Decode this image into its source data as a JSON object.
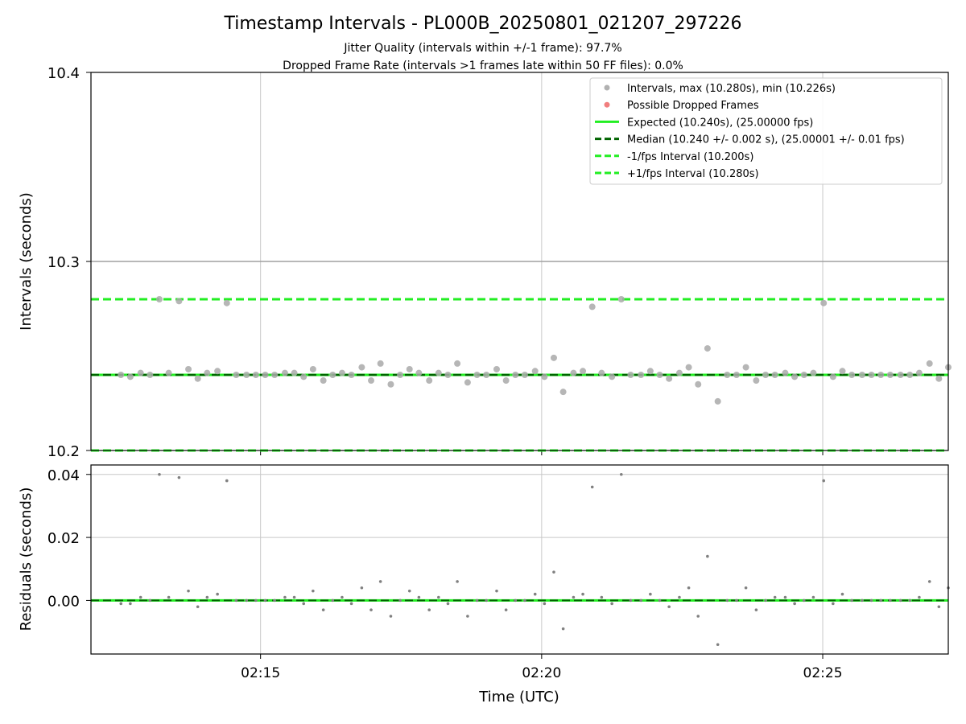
{
  "chart_data": [
    {
      "type": "scatter",
      "title": "Timestamp Intervals - PL000B_20250801_021207_297226",
      "subtitle_lines": [
        "Jitter Quality (intervals within +/-1 frame): 97.7%",
        "Dropped Frame Rate (intervals >1 frames late within 50 FF files): 0.0%"
      ],
      "ylabel": "Intervals (seconds)",
      "ylim": [
        10.2,
        10.4
      ],
      "yticks": [
        "10.2",
        "10.3",
        "10.4"
      ],
      "xlim": [
        "02:11:59",
        "02:27:14"
      ],
      "xticks": [
        "02:15",
        "02:20",
        "02:25"
      ],
      "grid": true,
      "legend_position": "top-right",
      "legend": [
        {
          "label": "Intervals, max (10.280s), min (10.226s)",
          "kind": "marker",
          "color": "#a9a9a9"
        },
        {
          "label": "Possible Dropped Frames",
          "kind": "marker",
          "color": "#f07070"
        },
        {
          "label": "Expected (10.240s), (25.00000 fps)",
          "kind": "solid",
          "color": "#22ee22"
        },
        {
          "label": "Median (10.240 +/- 0.002 s), (25.00001 +/- 0.01 fps)",
          "kind": "dashed",
          "color": "#006400"
        },
        {
          "label": "-1/fps Interval (10.200s)",
          "kind": "dashed",
          "color": "#22ee22"
        },
        {
          "label": "+1/fps Interval (10.280s)",
          "kind": "dashed",
          "color": "#22ee22"
        }
      ],
      "reference_lines": {
        "expected": 10.24,
        "median": 10.24,
        "lower": 10.2,
        "upper": 10.28,
        "highlight": 10.3
      },
      "x": [
        "02:12:31",
        "02:12:41",
        "02:12:52",
        "02:13:02",
        "02:13:12",
        "02:13:22",
        "02:13:33",
        "02:13:43",
        "02:13:53",
        "02:14:03",
        "02:14:14",
        "02:14:24",
        "02:14:34",
        "02:14:45",
        "02:14:55",
        "02:15:05",
        "02:15:15",
        "02:15:26",
        "02:15:36",
        "02:15:46",
        "02:15:56",
        "02:16:07",
        "02:16:17",
        "02:16:27",
        "02:16:37",
        "02:16:48",
        "02:16:58",
        "02:17:08",
        "02:17:19",
        "02:17:29",
        "02:17:39",
        "02:17:49",
        "02:18:00",
        "02:18:10",
        "02:18:20",
        "02:18:30",
        "02:18:41",
        "02:18:51",
        "02:19:01",
        "02:19:12",
        "02:19:22",
        "02:19:32",
        "02:19:42",
        "02:19:53",
        "02:20:03",
        "02:20:13",
        "02:20:23",
        "02:20:34",
        "02:20:44",
        "02:20:54",
        "02:21:04",
        "02:21:15",
        "02:21:25",
        "02:21:35",
        "02:21:46",
        "02:21:56",
        "02:22:06",
        "02:22:16",
        "02:22:27",
        "02:22:37",
        "02:22:47",
        "02:22:57",
        "02:23:08",
        "02:23:18",
        "02:23:28",
        "02:23:38",
        "02:23:49",
        "02:23:59",
        "02:24:09",
        "02:24:20",
        "02:24:30",
        "02:24:40",
        "02:24:50",
        "02:25:01",
        "02:25:11",
        "02:25:21",
        "02:25:31",
        "02:25:42",
        "02:25:52",
        "02:26:02",
        "02:26:12",
        "02:26:23",
        "02:26:33",
        "02:26:43",
        "02:26:54",
        "02:27:04",
        "02:27:14"
      ],
      "values": [
        10.24,
        10.239,
        10.241,
        10.24,
        10.28,
        10.241,
        10.279,
        10.243,
        10.238,
        10.241,
        10.242,
        10.278,
        10.24,
        10.24,
        10.24,
        10.24,
        10.24,
        10.241,
        10.241,
        10.239,
        10.243,
        10.237,
        10.24,
        10.241,
        10.24,
        10.244,
        10.237,
        10.246,
        10.235,
        10.24,
        10.243,
        10.241,
        10.237,
        10.241,
        10.24,
        10.246,
        10.236,
        10.24,
        10.24,
        10.243,
        10.237,
        10.24,
        10.24,
        10.242,
        10.239,
        10.249,
        10.231,
        10.241,
        10.242,
        10.276,
        10.241,
        10.239,
        10.28,
        10.24,
        10.24,
        10.242,
        10.24,
        10.238,
        10.241,
        10.244,
        10.235,
        10.254,
        10.226,
        10.24,
        10.24,
        10.244,
        10.237,
        10.24,
        10.24,
        10.241,
        10.239,
        10.24,
        10.241,
        10.278,
        10.239,
        10.242,
        10.24,
        10.24,
        10.24,
        10.24,
        10.24,
        10.24,
        10.24,
        10.241,
        10.246,
        10.238,
        10.244
      ]
    },
    {
      "type": "scatter",
      "xlabel": "Time (UTC)",
      "ylabel": "Residuals (seconds)",
      "ylim": [
        -0.017,
        0.043
      ],
      "yticks": [
        "0.00",
        "0.02",
        "0.04"
      ],
      "xticks": [
        "02:15",
        "02:20",
        "02:25"
      ],
      "grid": true,
      "reference_line": 0.0,
      "point_color": "#808080",
      "values": [
        -0.001,
        -0.001,
        0.001,
        -0.0,
        0.04,
        0.001,
        0.039,
        0.003,
        -0.002,
        0.001,
        0.002,
        0.038,
        -0.0,
        -0.0,
        0.0,
        -0.0,
        0.0,
        0.001,
        0.001,
        -0.001,
        0.003,
        -0.003,
        -0.0,
        0.001,
        -0.001,
        0.004,
        -0.003,
        0.006,
        -0.005,
        -0.0,
        0.003,
        0.001,
        -0.003,
        0.001,
        -0.001,
        0.006,
        -0.005,
        -0.0,
        0.0,
        0.003,
        -0.003,
        -0.0,
        0.0,
        0.002,
        -0.001,
        0.009,
        -0.009,
        0.001,
        0.002,
        0.036,
        0.001,
        -0.001,
        0.04,
        -0.0,
        -0.0,
        0.002,
        0.0,
        -0.002,
        0.001,
        0.004,
        -0.005,
        0.014,
        -0.014,
        0.0,
        0.0,
        0.004,
        -0.003,
        0.0,
        0.001,
        0.001,
        -0.001,
        0.0,
        0.001,
        0.038,
        -0.001,
        0.002,
        -0.0,
        0.0,
        0.0,
        0.0,
        0.0,
        0.0,
        0.0,
        0.001,
        0.006,
        -0.002,
        0.004
      ]
    }
  ]
}
